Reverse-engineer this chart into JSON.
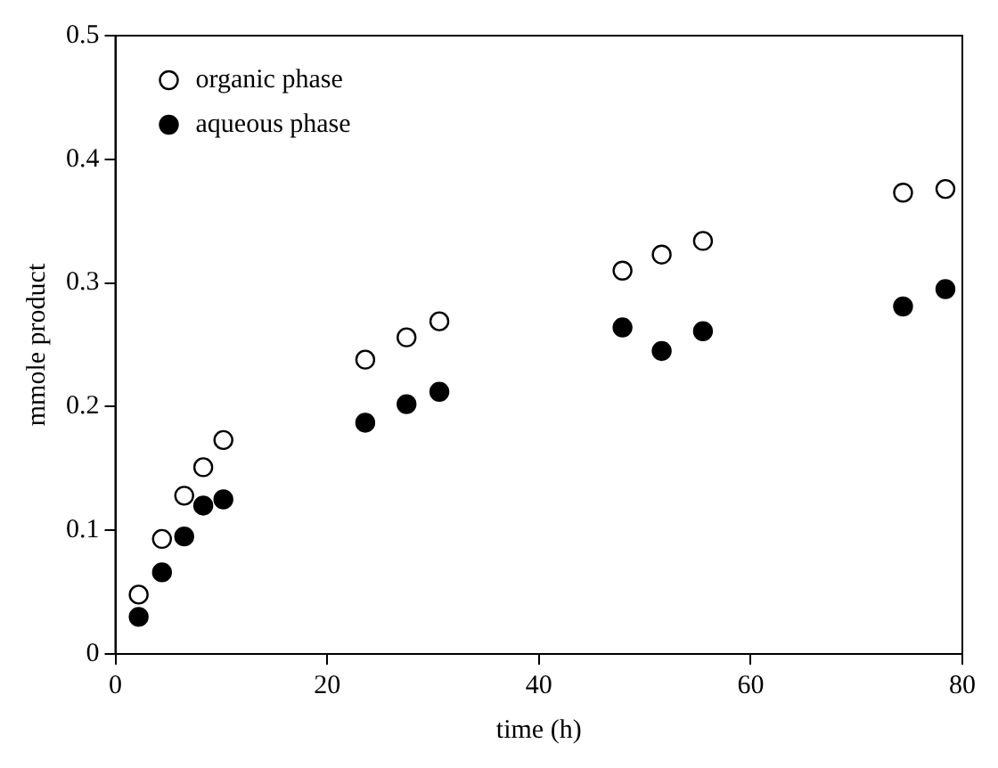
{
  "chart_data": {
    "type": "scatter",
    "xlabel": "time (h)",
    "ylabel": "mmole product",
    "xlim": [
      0,
      80
    ],
    "xticks": [
      0,
      20,
      40,
      60,
      80
    ],
    "ylim": [
      0,
      0.5
    ],
    "yticks": [
      0,
      0.1,
      0.2,
      0.3,
      0.4,
      0.5
    ],
    "legend": "top left",
    "marker": "circle",
    "grid": false,
    "x": [
      2.2,
      4.4,
      6.5,
      8.3,
      10.2,
      23.6,
      27.5,
      30.6,
      47.9,
      51.6,
      55.5,
      74.4,
      78.4
    ],
    "series": [
      {
        "name": "organic phase",
        "color": "#ffffff",
        "values": [
          0.048,
          0.093,
          0.128,
          0.151,
          0.173,
          0.238,
          0.256,
          0.269,
          0.31,
          0.323,
          0.334,
          0.373,
          0.376
        ]
      },
      {
        "name": "aqueous phase",
        "color": "#000000",
        "values": [
          0.03,
          0.066,
          0.095,
          0.12,
          0.125,
          0.187,
          0.202,
          0.212,
          0.264,
          0.245,
          0.261,
          0.281,
          0.295
        ]
      }
    ]
  }
}
